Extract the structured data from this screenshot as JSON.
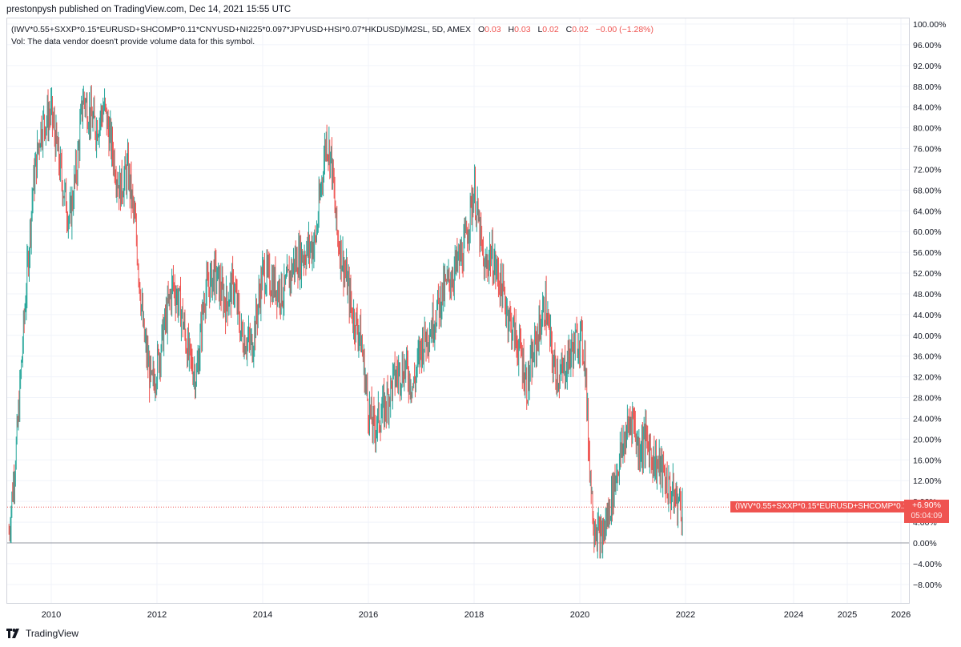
{
  "publisher": "prestonpysh published on TradingView.com, Dec 14, 2021 15:55 UTC",
  "legend": {
    "symbol": "(IWV*0.55+SXXP*0.15*EURUSD+SHCOMP*0.11*CNYUSD+NI225*0.097*JPYUSD+HSI*0.07*HKDUSD)/M2SL, 5D, AMEX",
    "o_label": "O",
    "o": "0.03",
    "h_label": "H",
    "h": "0.03",
    "l_label": "L",
    "l": "0.02",
    "c_label": "C",
    "c": "0.02",
    "change": "−0.00 (−1.28%)",
    "vol_note": "Vol: The data vendor doesn't provide volume data for this symbol."
  },
  "price_label": "(IWV*0.55+SXXP*0.15*EURUSD+SHCOMP*0.1...",
  "last_value": "+6.90%",
  "countdown": "05:04:09",
  "footer_brand": "TradingView",
  "colors": {
    "up": "#26a69a",
    "down": "#ef5350",
    "grid": "#f0f3fa",
    "axis_text": "#131722"
  },
  "chart_data": {
    "type": "candlestick",
    "title": "",
    "xlabel": "",
    "ylabel": "",
    "y_unit": "%",
    "ylim": [
      -10,
      100
    ],
    "x_ticks": [
      "2010",
      "2012",
      "2014",
      "2016",
      "2018",
      "2020",
      "2022",
      "2024",
      "2025",
      "2026"
    ],
    "y_ticks": [
      "100.00%",
      "96.00%",
      "92.00%",
      "88.00%",
      "84.00%",
      "80.00%",
      "76.00%",
      "72.00%",
      "68.00%",
      "64.00%",
      "60.00%",
      "56.00%",
      "52.00%",
      "48.00%",
      "44.00%",
      "40.00%",
      "36.00%",
      "32.00%",
      "28.00%",
      "24.00%",
      "20.00%",
      "16.00%",
      "12.00%",
      "8.00%",
      "4.00%",
      "0.00%",
      "−4.00%",
      "−8.00%"
    ],
    "last_value": 6.9,
    "zero_line": 0,
    "grid": true,
    "series": [
      {
        "x": [
          2009.2,
          2009.35,
          2009.5,
          2009.65,
          2009.8,
          2010.0,
          2010.2,
          2010.35,
          2010.5,
          2010.6,
          2010.75,
          2010.85,
          2011.0,
          2011.15,
          2011.3,
          2011.45,
          2011.6,
          2011.75,
          2011.9,
          2012.0,
          2012.15,
          2012.3,
          2012.45,
          2012.6,
          2012.75,
          2012.9,
          2013.1,
          2013.3,
          2013.45,
          2013.6,
          2013.8,
          2014.0,
          2014.2,
          2014.4,
          2014.6,
          2014.8,
          2015.0,
          2015.2,
          2015.3,
          2015.4,
          2015.6,
          2015.7,
          2015.85,
          2016.0,
          2016.1,
          2016.3,
          2016.5,
          2016.7,
          2016.85,
          2017.0,
          2017.2,
          2017.4,
          2017.6,
          2017.8,
          2018.0,
          2018.1,
          2018.2,
          2018.3,
          2018.5,
          2018.7,
          2018.9,
          2019.0,
          2019.2,
          2019.35,
          2019.5,
          2019.65,
          2019.8,
          2020.0,
          2020.1,
          2020.15,
          2020.25,
          2020.4,
          2020.55,
          2020.7,
          2020.85,
          2021.0,
          2021.1,
          2021.25,
          2021.4,
          2021.55,
          2021.7,
          2021.85,
          2021.95
        ],
        "values": [
          2,
          20,
          45,
          68,
          80,
          83,
          70,
          62,
          74,
          86,
          82,
          80,
          84,
          76,
          68,
          72,
          60,
          40,
          30,
          34,
          42,
          50,
          45,
          36,
          32,
          48,
          52,
          46,
          50,
          40,
          38,
          52,
          50,
          48,
          54,
          56,
          58,
          78,
          74,
          60,
          50,
          44,
          40,
          26,
          22,
          26,
          32,
          34,
          30,
          38,
          42,
          48,
          52,
          56,
          68,
          60,
          52,
          56,
          50,
          42,
          36,
          30,
          40,
          46,
          34,
          32,
          36,
          40,
          36,
          22,
          5,
          0,
          6,
          14,
          20,
          25,
          18,
          20,
          16,
          14,
          10,
          8,
          7
        ]
      }
    ]
  }
}
